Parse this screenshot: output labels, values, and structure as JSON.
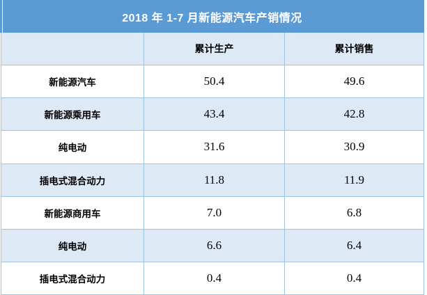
{
  "table": {
    "title": "2018 年 1-7 月新能源汽车产销情况",
    "header": {
      "label_col": "",
      "production_col": "累计生产",
      "sales_col": "累计销售"
    },
    "rows": [
      {
        "label": "新能源汽车",
        "production": "50.4",
        "sales": "49.6"
      },
      {
        "label": "新能源乘用车",
        "production": "43.4",
        "sales": "42.8"
      },
      {
        "label": "纯电动",
        "production": "31.6",
        "sales": "30.9"
      },
      {
        "label": "插电式混合动力",
        "production": "11.8",
        "sales": "11.9"
      },
      {
        "label": "新能源商用车",
        "production": "7.0",
        "sales": "6.8"
      },
      {
        "label": "纯电动",
        "production": "6.6",
        "sales": "6.4"
      },
      {
        "label": "插电式混合动力",
        "production": "0.4",
        "sales": "0.4"
      }
    ]
  },
  "chart_data": {
    "type": "table",
    "title": "2018 年 1-7 月新能源汽车产销情况",
    "columns": [
      "",
      "累计生产",
      "累计销售"
    ],
    "rows": [
      [
        "新能源汽车",
        50.4,
        49.6
      ],
      [
        "新能源乘用车",
        43.4,
        42.8
      ],
      [
        "纯电动",
        31.6,
        30.9
      ],
      [
        "插电式混合动力",
        11.8,
        11.9
      ],
      [
        "新能源商用车",
        7.0,
        6.8
      ],
      [
        "纯电动",
        6.6,
        6.4
      ],
      [
        "插电式混合动力",
        0.4,
        0.4
      ]
    ],
    "layout": {
      "striped_rows": true,
      "title_position": "top-merged-row",
      "value_alignment": "center"
    }
  },
  "colors": {
    "title_bg": "#5B9BD5",
    "stripe_bg": "#DEE9F6",
    "border": "#9DC3E6",
    "title_text": "#FFFFFF",
    "text": "#000000"
  }
}
